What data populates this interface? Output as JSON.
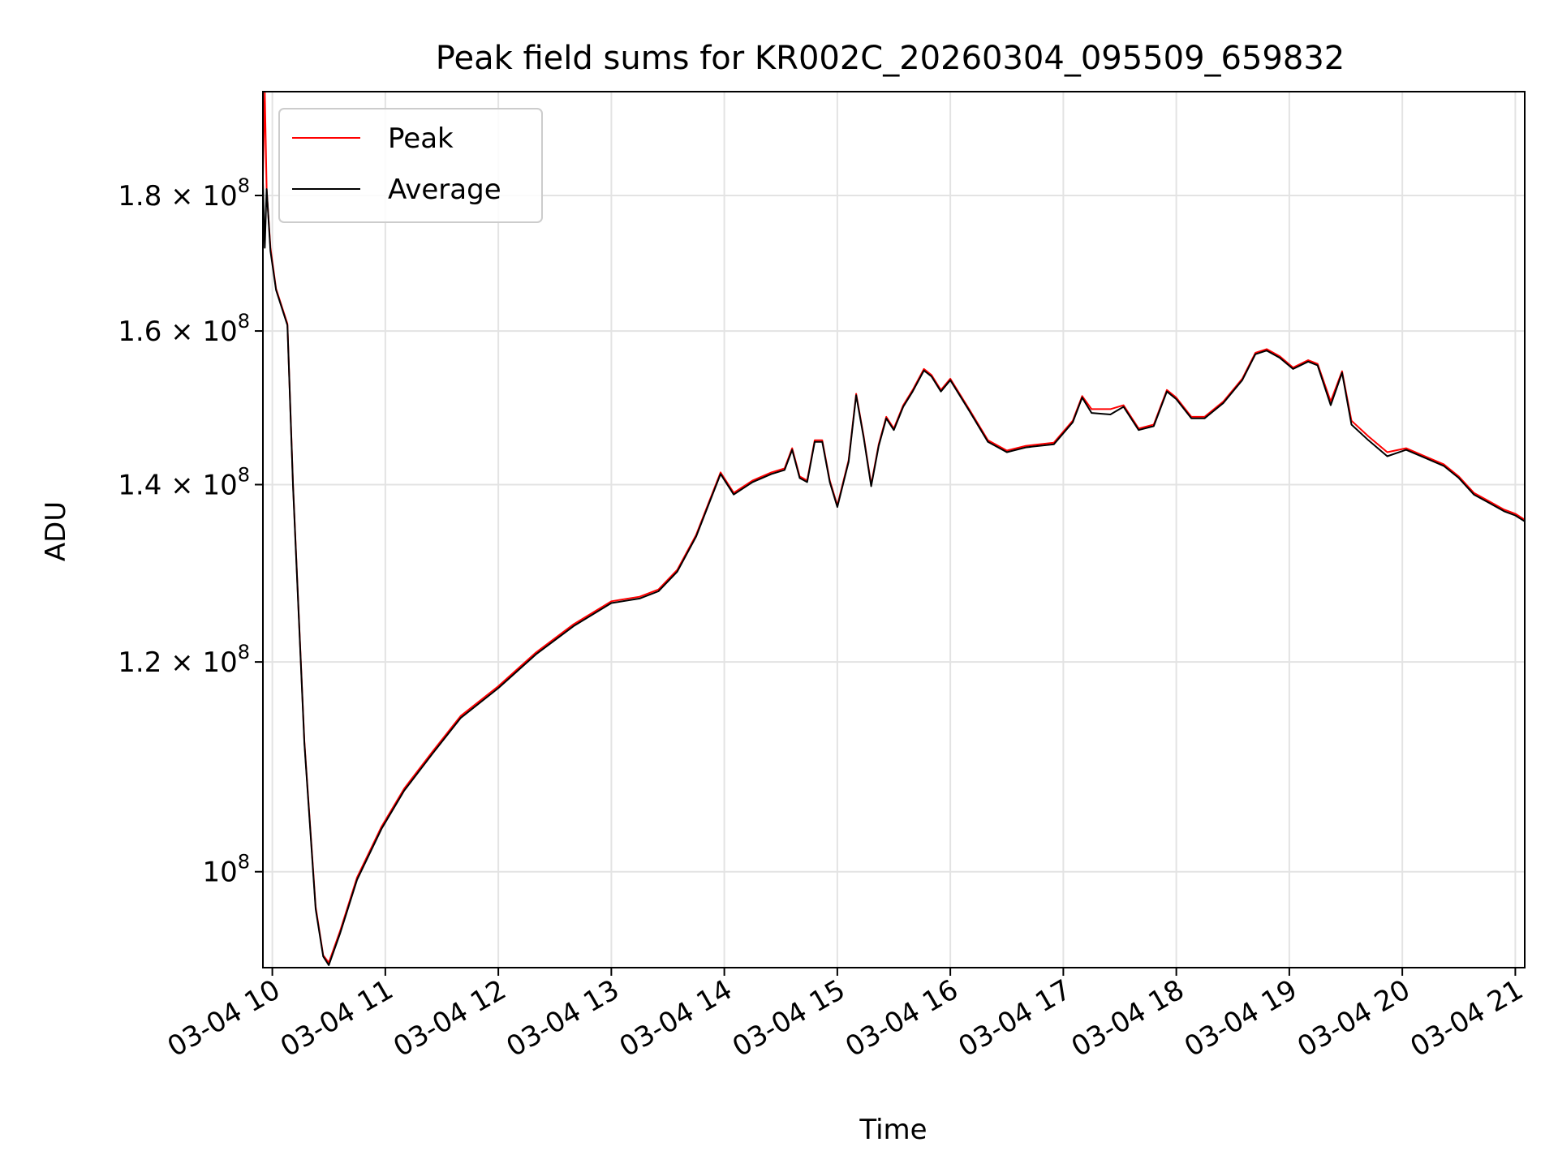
{
  "chart_data": {
    "type": "line",
    "title": "Peak field sums for KR002C_20260304_095509_659832",
    "xlabel": "Time",
    "ylabel": "ADU",
    "y_scale": "log",
    "ylim": [
      92000000,
      197000000
    ],
    "xlim": [
      "2026-03-04 09:55",
      "2026-03-04 21:05"
    ],
    "grid": true,
    "legend_position": "top-left",
    "x_ticks": [
      {
        "t": "2026-03-04 10:00",
        "label": "03-04 10"
      },
      {
        "t": "2026-03-04 11:00",
        "label": "03-04 11"
      },
      {
        "t": "2026-03-04 12:00",
        "label": "03-04 12"
      },
      {
        "t": "2026-03-04 13:00",
        "label": "03-04 13"
      },
      {
        "t": "2026-03-04 14:00",
        "label": "03-04 14"
      },
      {
        "t": "2026-03-04 15:00",
        "label": "03-04 15"
      },
      {
        "t": "2026-03-04 16:00",
        "label": "03-04 16"
      },
      {
        "t": "2026-03-04 17:00",
        "label": "03-04 17"
      },
      {
        "t": "2026-03-04 18:00",
        "label": "03-04 18"
      },
      {
        "t": "2026-03-04 19:00",
        "label": "03-04 19"
      },
      {
        "t": "2026-03-04 20:00",
        "label": "03-04 20"
      },
      {
        "t": "2026-03-04 21:00",
        "label": "03-04 21"
      }
    ],
    "y_ticks": [
      {
        "value": 100000000,
        "mantissa": "",
        "base": "10",
        "exp": "8"
      },
      {
        "value": 120000000,
        "mantissa": "1.2",
        "base": "10",
        "exp": "8"
      },
      {
        "value": 140000000,
        "mantissa": "1.4",
        "base": "10",
        "exp": "8"
      },
      {
        "value": 160000000,
        "mantissa": "1.6",
        "base": "10",
        "exp": "8"
      },
      {
        "value": 180000000,
        "mantissa": "1.8",
        "base": "10",
        "exp": "8"
      }
    ],
    "series": [
      {
        "name": "Peak",
        "color": "#ff0000",
        "points": [
          [
            "2026-03-04 09:55",
            183000000
          ],
          [
            "2026-03-04 09:56",
            197000000
          ],
          [
            "2026-03-04 09:57",
            181000000
          ],
          [
            "2026-03-04 09:59",
            172000000
          ],
          [
            "2026-03-04 10:02",
            166000000
          ],
          [
            "2026-03-04 10:08",
            161000000
          ],
          [
            "2026-03-04 10:11",
            140000000
          ],
          [
            "2026-03-04 10:17",
            112000000
          ],
          [
            "2026-03-04 10:23",
            97000000
          ],
          [
            "2026-03-04 10:27",
            93000000
          ],
          [
            "2026-03-04 10:30",
            92400000
          ],
          [
            "2026-03-04 10:36",
            95000000
          ],
          [
            "2026-03-04 10:45",
            99500000
          ],
          [
            "2026-03-04 10:58",
            104000000
          ],
          [
            "2026-03-04 11:10",
            107500000
          ],
          [
            "2026-03-04 11:25",
            111000000
          ],
          [
            "2026-03-04 11:40",
            114500000
          ],
          [
            "2026-03-04 12:00",
            117500000
          ],
          [
            "2026-03-04 12:20",
            121000000
          ],
          [
            "2026-03-04 12:40",
            124000000
          ],
          [
            "2026-03-04 13:00",
            126500000
          ],
          [
            "2026-03-04 13:15",
            127000000
          ],
          [
            "2026-03-04 13:25",
            127800000
          ],
          [
            "2026-03-04 13:35",
            130000000
          ],
          [
            "2026-03-04 13:45",
            134000000
          ],
          [
            "2026-03-04 13:52",
            138000000
          ],
          [
            "2026-03-04 13:58",
            141500000
          ],
          [
            "2026-03-04 14:05",
            139000000
          ],
          [
            "2026-03-04 14:15",
            140500000
          ],
          [
            "2026-03-04 14:25",
            141500000
          ],
          [
            "2026-03-04 14:32",
            142000000
          ],
          [
            "2026-03-04 14:36",
            144500000
          ],
          [
            "2026-03-04 14:40",
            141000000
          ],
          [
            "2026-03-04 14:44",
            140500000
          ],
          [
            "2026-03-04 14:48",
            145500000
          ],
          [
            "2026-03-04 14:52",
            145500000
          ],
          [
            "2026-03-04 14:56",
            140500000
          ],
          [
            "2026-03-04 15:00",
            137500000
          ],
          [
            "2026-03-04 15:06",
            143000000
          ],
          [
            "2026-03-04 15:10",
            151500000
          ],
          [
            "2026-03-04 15:14",
            146000000
          ],
          [
            "2026-03-04 15:18",
            140000000
          ],
          [
            "2026-03-04 15:22",
            145000000
          ],
          [
            "2026-03-04 15:26",
            148500000
          ],
          [
            "2026-03-04 15:30",
            147000000
          ],
          [
            "2026-03-04 15:35",
            150000000
          ],
          [
            "2026-03-04 15:40",
            152000000
          ],
          [
            "2026-03-04 15:46",
            154800000
          ],
          [
            "2026-03-04 15:50",
            154000000
          ],
          [
            "2026-03-04 15:55",
            152000000
          ],
          [
            "2026-03-04 16:00",
            153500000
          ],
          [
            "2026-03-04 16:10",
            149500000
          ],
          [
            "2026-03-04 16:20",
            145500000
          ],
          [
            "2026-03-04 16:30",
            144200000
          ],
          [
            "2026-03-04 16:40",
            144800000
          ],
          [
            "2026-03-04 16:55",
            145200000
          ],
          [
            "2026-03-04 17:05",
            148000000
          ],
          [
            "2026-03-04 17:10",
            151200000
          ],
          [
            "2026-03-04 17:15",
            149500000
          ],
          [
            "2026-03-04 17:25",
            149500000
          ],
          [
            "2026-03-04 17:32",
            150000000
          ],
          [
            "2026-03-04 17:40",
            147000000
          ],
          [
            "2026-03-04 17:48",
            147500000
          ],
          [
            "2026-03-04 17:55",
            152000000
          ],
          [
            "2026-03-04 18:00",
            151000000
          ],
          [
            "2026-03-04 18:08",
            148500000
          ],
          [
            "2026-03-04 18:15",
            148500000
          ],
          [
            "2026-03-04 18:25",
            150500000
          ],
          [
            "2026-03-04 18:35",
            153500000
          ],
          [
            "2026-03-04 18:42",
            157000000
          ],
          [
            "2026-03-04 18:48",
            157500000
          ],
          [
            "2026-03-04 18:55",
            156500000
          ],
          [
            "2026-03-04 19:02",
            155000000
          ],
          [
            "2026-03-04 19:10",
            156000000
          ],
          [
            "2026-03-04 19:15",
            155500000
          ],
          [
            "2026-03-04 19:22",
            150500000
          ],
          [
            "2026-03-04 19:28",
            154500000
          ],
          [
            "2026-03-04 19:33",
            148000000
          ],
          [
            "2026-03-04 19:42",
            146000000
          ],
          [
            "2026-03-04 19:52",
            144000000
          ],
          [
            "2026-03-04 20:02",
            144500000
          ],
          [
            "2026-03-04 20:12",
            143500000
          ],
          [
            "2026-03-04 20:22",
            142500000
          ],
          [
            "2026-03-04 20:30",
            141000000
          ],
          [
            "2026-03-04 20:38",
            139000000
          ],
          [
            "2026-03-04 20:46",
            138000000
          ],
          [
            "2026-03-04 20:54",
            137000000
          ],
          [
            "2026-03-04 21:00",
            136500000
          ],
          [
            "2026-03-04 21:05",
            135800000
          ]
        ]
      },
      {
        "name": "Average",
        "color": "#000000",
        "points": [
          [
            "2026-03-04 09:55",
            182000000
          ],
          [
            "2026-03-04 09:56",
            172000000
          ],
          [
            "2026-03-04 09:57",
            181000000
          ],
          [
            "2026-03-04 09:59",
            171500000
          ],
          [
            "2026-03-04 10:02",
            165800000
          ],
          [
            "2026-03-04 10:08",
            160800000
          ],
          [
            "2026-03-04 10:11",
            139800000
          ],
          [
            "2026-03-04 10:17",
            111800000
          ],
          [
            "2026-03-04 10:23",
            96800000
          ],
          [
            "2026-03-04 10:27",
            92900000
          ],
          [
            "2026-03-04 10:30",
            92200000
          ],
          [
            "2026-03-04 10:36",
            94800000
          ],
          [
            "2026-03-04 10:45",
            99300000
          ],
          [
            "2026-03-04 10:58",
            103800000
          ],
          [
            "2026-03-04 11:10",
            107300000
          ],
          [
            "2026-03-04 11:25",
            110800000
          ],
          [
            "2026-03-04 11:40",
            114300000
          ],
          [
            "2026-03-04 12:00",
            117300000
          ],
          [
            "2026-03-04 12:20",
            120800000
          ],
          [
            "2026-03-04 12:40",
            123800000
          ],
          [
            "2026-03-04 13:00",
            126300000
          ],
          [
            "2026-03-04 13:15",
            126800000
          ],
          [
            "2026-03-04 13:25",
            127600000
          ],
          [
            "2026-03-04 13:35",
            129800000
          ],
          [
            "2026-03-04 13:45",
            133800000
          ],
          [
            "2026-03-04 13:52",
            137800000
          ],
          [
            "2026-03-04 13:58",
            141300000
          ],
          [
            "2026-03-04 14:05",
            138800000
          ],
          [
            "2026-03-04 14:15",
            140300000
          ],
          [
            "2026-03-04 14:25",
            141300000
          ],
          [
            "2026-03-04 14:32",
            141800000
          ],
          [
            "2026-03-04 14:36",
            144300000
          ],
          [
            "2026-03-04 14:40",
            140800000
          ],
          [
            "2026-03-04 14:44",
            140300000
          ],
          [
            "2026-03-04 14:48",
            145300000
          ],
          [
            "2026-03-04 14:52",
            145300000
          ],
          [
            "2026-03-04 14:56",
            140300000
          ],
          [
            "2026-03-04 15:00",
            137300000
          ],
          [
            "2026-03-04 15:06",
            142800000
          ],
          [
            "2026-03-04 15:10",
            151300000
          ],
          [
            "2026-03-04 15:14",
            145800000
          ],
          [
            "2026-03-04 15:18",
            139800000
          ],
          [
            "2026-03-04 15:22",
            144800000
          ],
          [
            "2026-03-04 15:26",
            148300000
          ],
          [
            "2026-03-04 15:30",
            146800000
          ],
          [
            "2026-03-04 15:35",
            149800000
          ],
          [
            "2026-03-04 15:40",
            151800000
          ],
          [
            "2026-03-04 15:46",
            154600000
          ],
          [
            "2026-03-04 15:50",
            153800000
          ],
          [
            "2026-03-04 15:55",
            151800000
          ],
          [
            "2026-03-04 16:00",
            153300000
          ],
          [
            "2026-03-04 16:10",
            149300000
          ],
          [
            "2026-03-04 16:20",
            145300000
          ],
          [
            "2026-03-04 16:30",
            144000000
          ],
          [
            "2026-03-04 16:40",
            144600000
          ],
          [
            "2026-03-04 16:55",
            145000000
          ],
          [
            "2026-03-04 17:05",
            147800000
          ],
          [
            "2026-03-04 17:10",
            151000000
          ],
          [
            "2026-03-04 17:15",
            149000000
          ],
          [
            "2026-03-04 17:25",
            148800000
          ],
          [
            "2026-03-04 17:32",
            149800000
          ],
          [
            "2026-03-04 17:40",
            146800000
          ],
          [
            "2026-03-04 17:48",
            147300000
          ],
          [
            "2026-03-04 17:55",
            151800000
          ],
          [
            "2026-03-04 18:00",
            150800000
          ],
          [
            "2026-03-04 18:08",
            148300000
          ],
          [
            "2026-03-04 18:15",
            148300000
          ],
          [
            "2026-03-04 18:25",
            150300000
          ],
          [
            "2026-03-04 18:35",
            153300000
          ],
          [
            "2026-03-04 18:42",
            156800000
          ],
          [
            "2026-03-04 18:48",
            157300000
          ],
          [
            "2026-03-04 18:55",
            156300000
          ],
          [
            "2026-03-04 19:02",
            154800000
          ],
          [
            "2026-03-04 19:10",
            155800000
          ],
          [
            "2026-03-04 19:15",
            155300000
          ],
          [
            "2026-03-04 19:22",
            150000000
          ],
          [
            "2026-03-04 19:28",
            154300000
          ],
          [
            "2026-03-04 19:33",
            147500000
          ],
          [
            "2026-03-04 19:42",
            145500000
          ],
          [
            "2026-03-04 19:52",
            143500000
          ],
          [
            "2026-03-04 20:02",
            144300000
          ],
          [
            "2026-03-04 20:12",
            143300000
          ],
          [
            "2026-03-04 20:22",
            142300000
          ],
          [
            "2026-03-04 20:30",
            140800000
          ],
          [
            "2026-03-04 20:38",
            138800000
          ],
          [
            "2026-03-04 20:46",
            137800000
          ],
          [
            "2026-03-04 20:54",
            136800000
          ],
          [
            "2026-03-04 21:00",
            136300000
          ],
          [
            "2026-03-04 21:05",
            135600000
          ]
        ]
      }
    ]
  }
}
